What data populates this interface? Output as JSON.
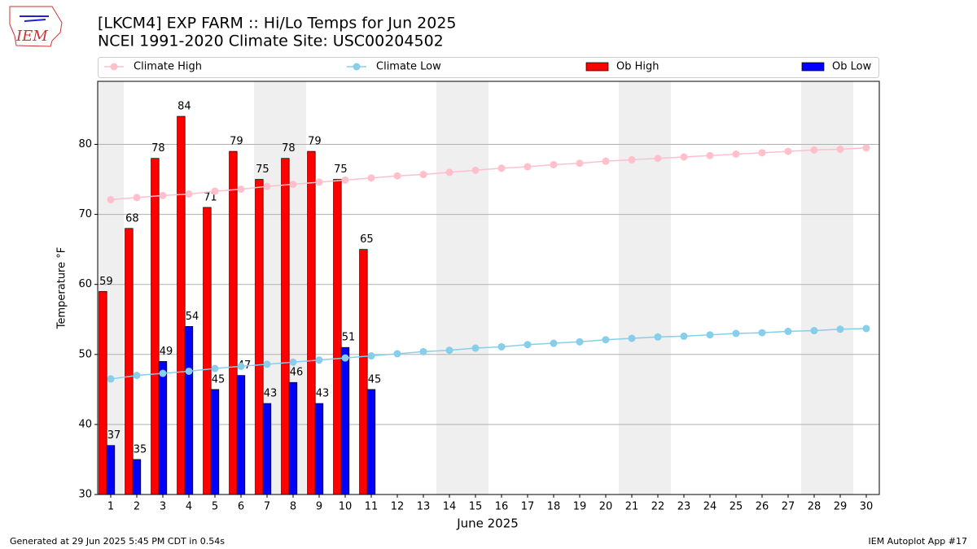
{
  "logo_text": "IEM",
  "footer": {
    "left": "Generated at 29 Jun 2025 5:45 PM CDT in 0.54s",
    "right": "IEM Autoplot App #17"
  },
  "chart_data": {
    "type": "bar",
    "title": "[LKCM4] EXP FARM :: Hi/Lo Temps for Jun 2025",
    "subtitle": "NCEI 1991-2020 Climate Site: USC00204502",
    "xlabel": "June 2025",
    "ylabel": "Temperature °F",
    "x": [
      1,
      2,
      3,
      4,
      5,
      6,
      7,
      8,
      9,
      10,
      11,
      12,
      13,
      14,
      15,
      16,
      17,
      18,
      19,
      20,
      21,
      22,
      23,
      24,
      25,
      26,
      27,
      28,
      29,
      30
    ],
    "xlim": [
      0.5,
      30.5
    ],
    "xticks": [
      1,
      2,
      3,
      4,
      5,
      6,
      7,
      8,
      9,
      10,
      11,
      12,
      13,
      14,
      15,
      16,
      17,
      18,
      19,
      20,
      21,
      22,
      23,
      24,
      25,
      26,
      27,
      28,
      29,
      30
    ],
    "ylim": [
      30,
      89
    ],
    "yticks": [
      30,
      40,
      50,
      60,
      70,
      80
    ],
    "grid": true,
    "series": [
      {
        "name": "Climate High",
        "type": "line",
        "color": "#ffc0cb",
        "values": [
          72.1,
          72.4,
          72.7,
          72.9,
          73.3,
          73.6,
          74.0,
          74.3,
          74.6,
          74.9,
          75.2,
          75.5,
          75.7,
          76.0,
          76.3,
          76.6,
          76.8,
          77.1,
          77.3,
          77.6,
          77.8,
          78.0,
          78.2,
          78.4,
          78.6,
          78.8,
          79.0,
          79.2,
          79.3,
          79.5
        ]
      },
      {
        "name": "Climate Low",
        "type": "line",
        "color": "#87ceeb",
        "values": [
          46.5,
          47.0,
          47.3,
          47.6,
          48.0,
          48.3,
          48.6,
          48.9,
          49.2,
          49.5,
          49.8,
          50.1,
          50.4,
          50.6,
          50.9,
          51.1,
          51.4,
          51.6,
          51.8,
          52.1,
          52.3,
          52.5,
          52.6,
          52.8,
          53.0,
          53.1,
          53.3,
          53.4,
          53.6,
          53.7
        ]
      },
      {
        "name": "Ob High",
        "type": "bar",
        "color": "#ff0000",
        "values": [
          59,
          68,
          78,
          84,
          71,
          79,
          75,
          78,
          79,
          75,
          65,
          null,
          null,
          null,
          null,
          null,
          null,
          null,
          null,
          null,
          null,
          null,
          null,
          null,
          null,
          null,
          null,
          null,
          null,
          null
        ]
      },
      {
        "name": "Ob Low",
        "type": "bar",
        "color": "#0000ff",
        "values": [
          37,
          35,
          49,
          54,
          45,
          47,
          43,
          46,
          43,
          51,
          45,
          null,
          null,
          null,
          null,
          null,
          null,
          null,
          null,
          null,
          null,
          null,
          null,
          null,
          null,
          null,
          null,
          null,
          null,
          null
        ]
      }
    ]
  }
}
